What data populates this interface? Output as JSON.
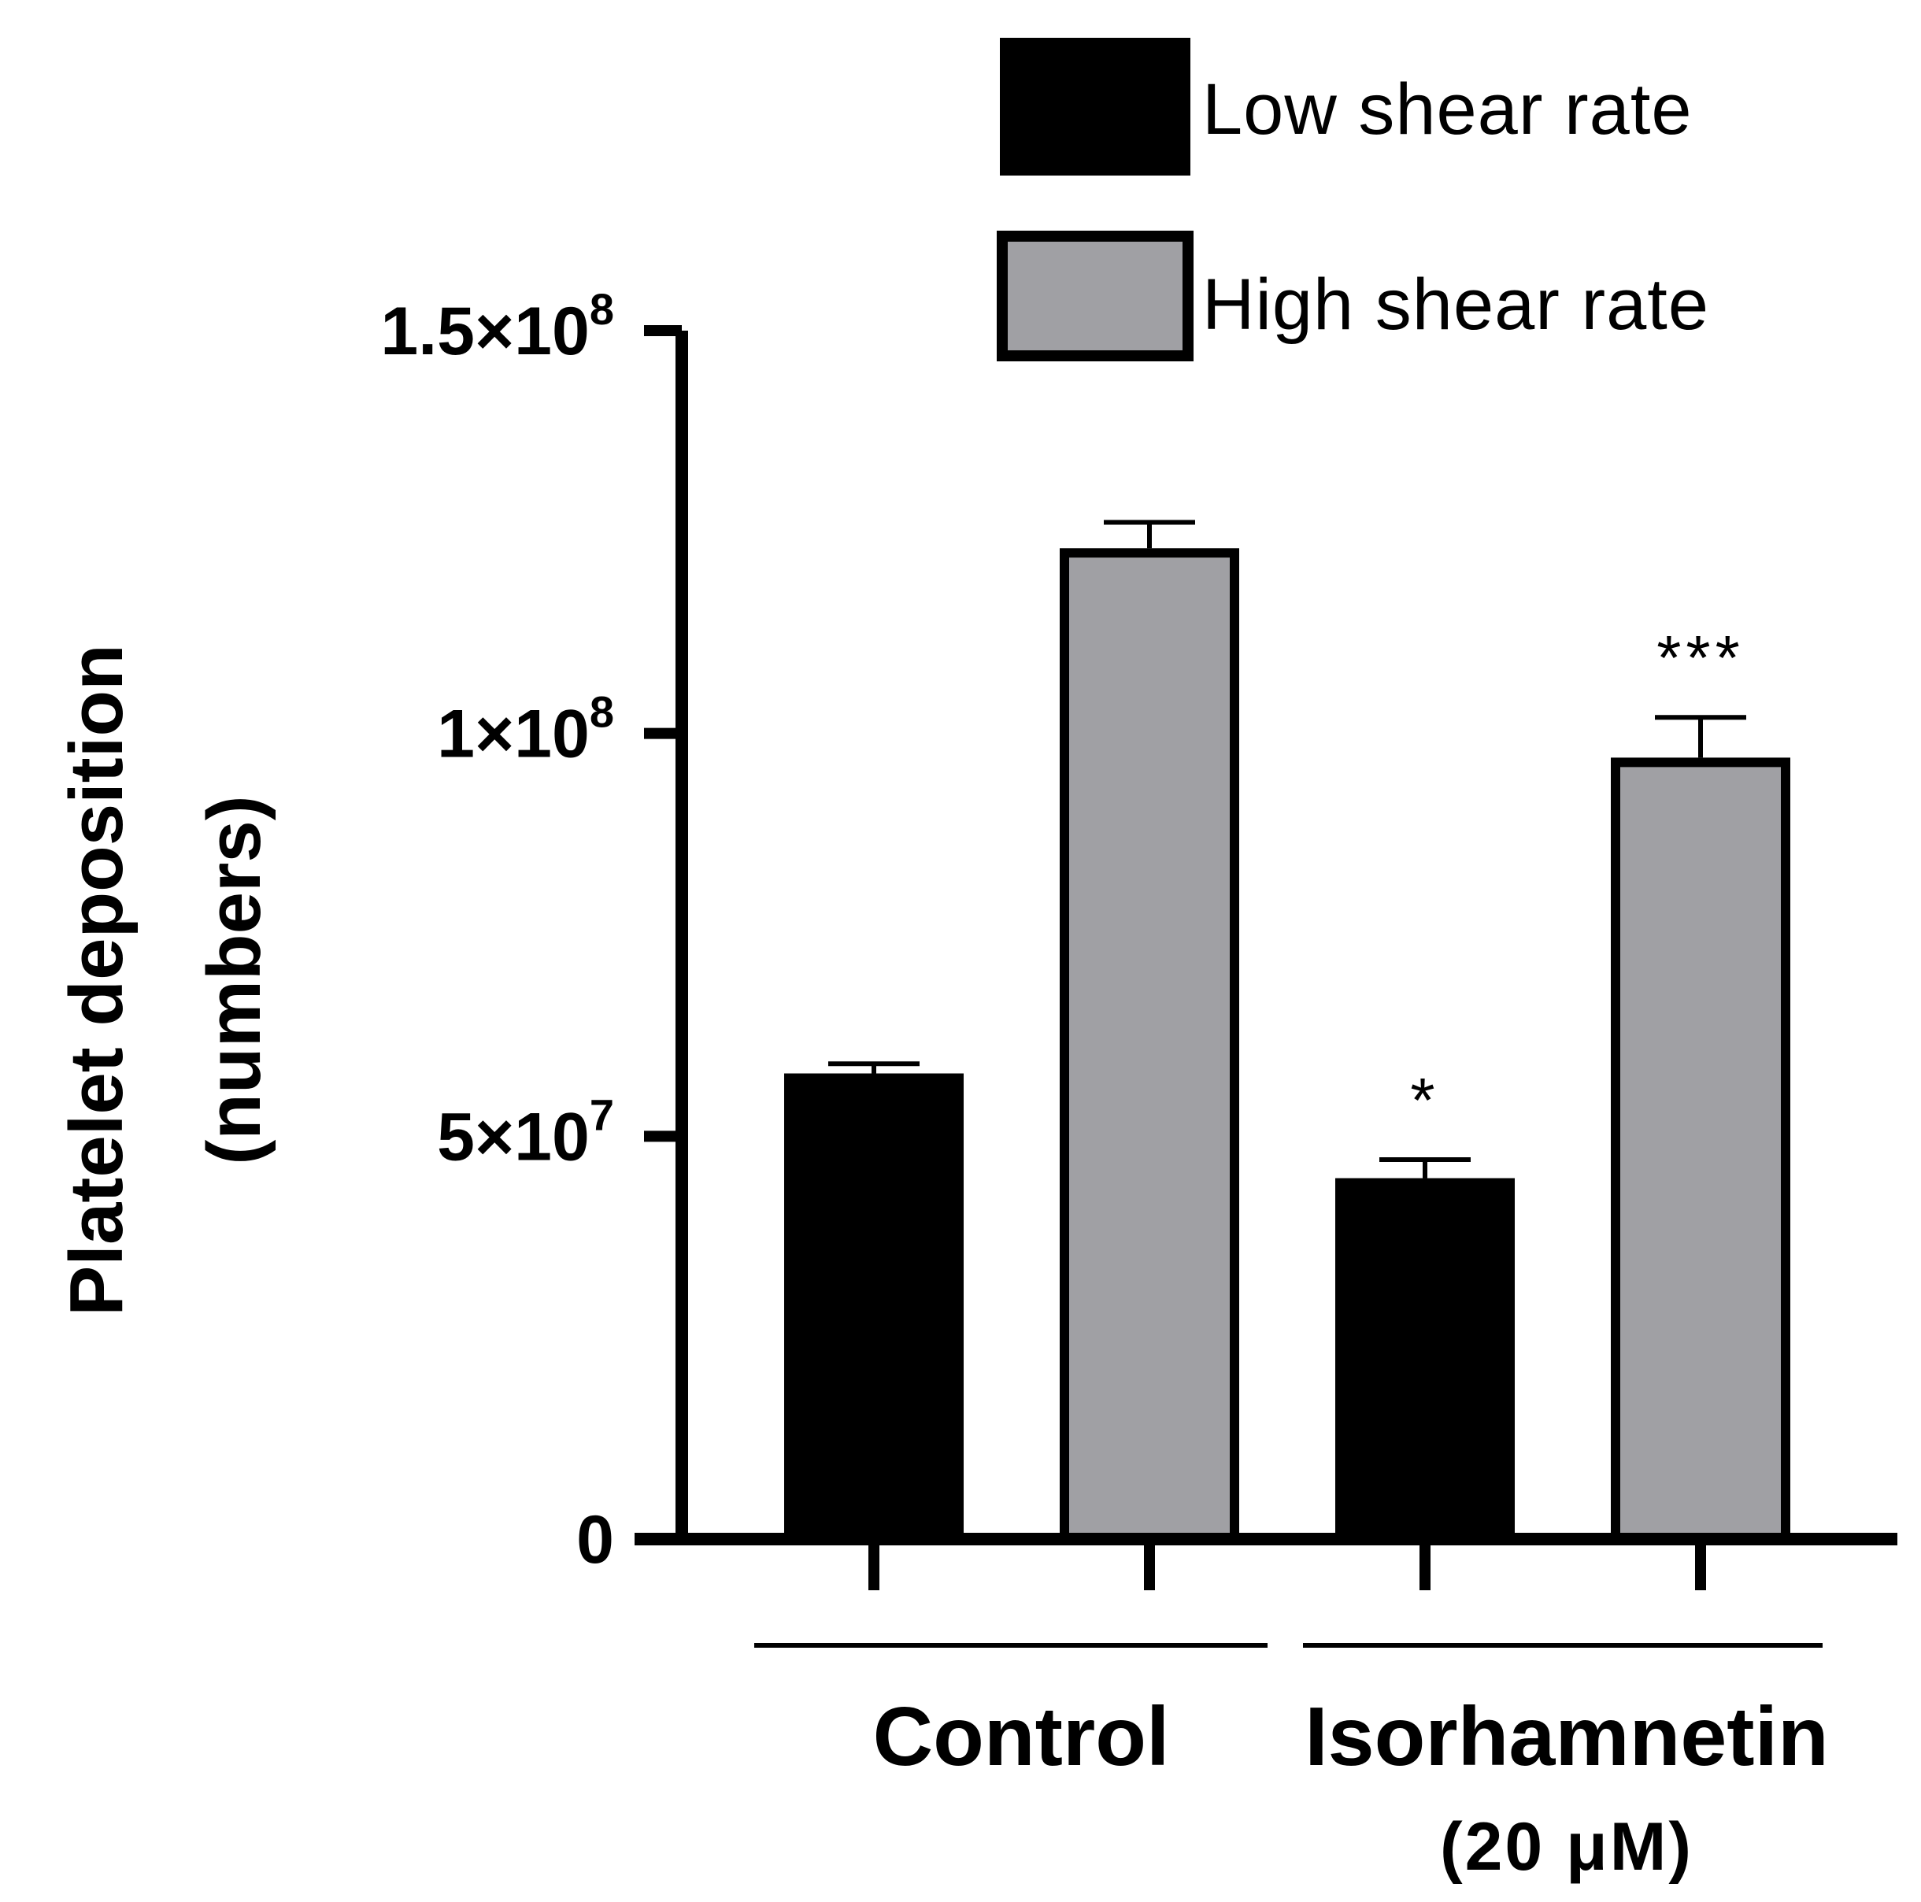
{
  "chart_data": {
    "type": "bar",
    "title": "",
    "xlabel": "",
    "ylabel": [
      "Platelet deposition",
      "(numbers)"
    ],
    "ylim": [
      0,
      150000000
    ],
    "yticks": [
      {
        "value": 0,
        "mantissa": "0",
        "exp": ""
      },
      {
        "value": 50000000,
        "mantissa": "5×10",
        "exp": "7"
      },
      {
        "value": 100000000,
        "mantissa": "1×10",
        "exp": "8"
      },
      {
        "value": 150000000,
        "mantissa": "1.5×10",
        "exp": "8"
      }
    ],
    "groups": [
      {
        "label": "Control",
        "sublabel": ""
      },
      {
        "label": "Isorhamnetin",
        "sublabel": "(20 μM)"
      }
    ],
    "series": [
      {
        "name": "Low shear rate",
        "color": "#000000",
        "values": [
          57800000,
          44800000
        ],
        "errors": [
          1200000,
          2300000
        ]
      },
      {
        "name": "High shear rate",
        "color": "#a0a0a4",
        "values": [
          123000000,
          97000000
        ],
        "errors": [
          3200000,
          5000000
        ]
      }
    ],
    "annotations": [
      "",
      "",
      "*",
      "***"
    ],
    "legend_position": "top-right"
  }
}
